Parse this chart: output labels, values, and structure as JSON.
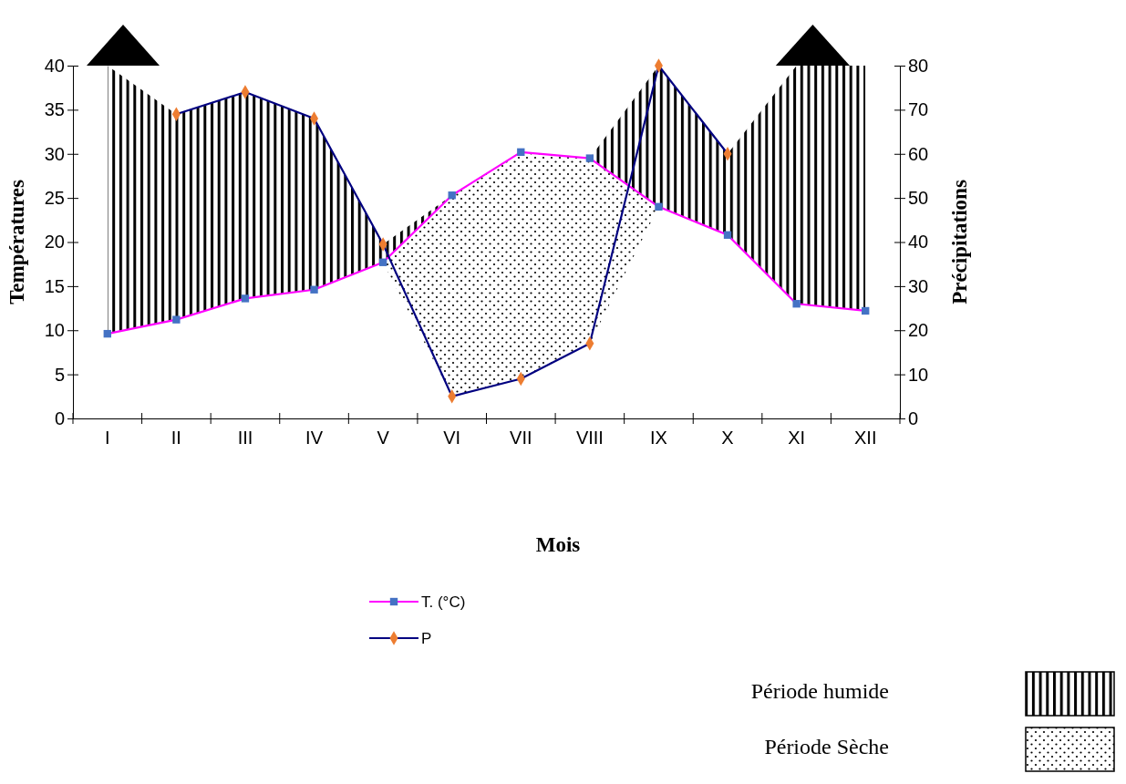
{
  "chart_data": {
    "type": "line",
    "categories": [
      "I",
      "II",
      "III",
      "IV",
      "V",
      "VI",
      "VII",
      "VIII",
      "IX",
      "X",
      "XI",
      "XII"
    ],
    "series": [
      {
        "name": "T. (°C)",
        "color": "#ff00ff",
        "marker": "square",
        "values": [
          9.6,
          11.2,
          13.6,
          14.6,
          17.7,
          25.3,
          30.2,
          29.5,
          24,
          20.8,
          13,
          12.2
        ],
        "lower": [
          9.6,
          11.2,
          13.6,
          14.6,
          17.7,
          2.5,
          4.5,
          8.5,
          24,
          20.8,
          13,
          12.2
        ],
        "upper": [
          40,
          34.5,
          37,
          34,
          19.75,
          25.3,
          30.2,
          29.5,
          40,
          30,
          40,
          40
        ]
      },
      {
        "name": "P",
        "color": "#000080",
        "marker": "diamond",
        "axis": "y2",
        "values": [
          null,
          69,
          74,
          68,
          39.5,
          5,
          9,
          17,
          80,
          60,
          null,
          null
        ]
      }
    ],
    "ylim": [
      0,
      40
    ],
    "yticks": [
      0,
      5,
      10,
      15,
      20,
      25,
      30,
      35,
      40
    ],
    "y2lim": [
      0,
      80
    ],
    "y2ticks": [
      0,
      10,
      20,
      30,
      40,
      50,
      60,
      70,
      80
    ],
    "xlabel": "Mois",
    "ylabel": "Températures",
    "y2label": "Précipitations",
    "legend": "bottom",
    "annotations": [
      "Période humide",
      "Période Sèche"
    ]
  }
}
